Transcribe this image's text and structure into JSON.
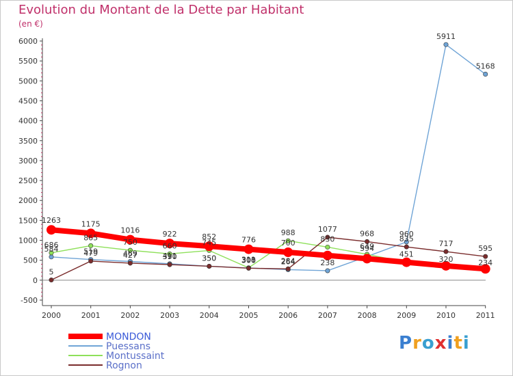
{
  "chart_data": {
    "type": "line",
    "title": "Evolution du Montant de la Dette par Habitant",
    "ylabel": "(en €)",
    "xlabel": "",
    "categories": [
      "2000",
      "2001",
      "2002",
      "2003",
      "2004",
      "2005",
      "2006",
      "2007",
      "2008",
      "2009",
      "2010",
      "2011"
    ],
    "ylim": [
      -500,
      6000
    ],
    "yticks": [
      -500,
      0,
      500,
      1000,
      1500,
      2000,
      2500,
      3000,
      3500,
      4000,
      4500,
      5000,
      5500,
      6000
    ],
    "series": [
      {
        "name": "MONDON",
        "color": "#ff0000",
        "width": 8,
        "values": [
          1263,
          1175,
          1016,
          922,
          852,
          776,
          700,
          620,
          540,
          450,
          360,
          284
        ],
        "labels": [
          "1263",
          "1175",
          "1016",
          "922",
          "852",
          "776",
          "700",
          "",
          "",
          "",
          "",
          ""
        ]
      },
      {
        "name": "Puessans",
        "color": "#6fa4d6",
        "width": 1.4,
        "values": [
          584,
          519,
          469,
          411,
          350,
          308,
          264,
          238,
          594,
          960,
          5911,
          5168
        ],
        "labels": [
          "584",
          "519",
          "469",
          "411",
          "350",
          "308",
          "264",
          "238",
          "594",
          "960",
          "5911",
          "5168"
        ]
      },
      {
        "name": "Montussaint",
        "color": "#8ee05a",
        "width": 1.4,
        "values": [
          686,
          865,
          750,
          660,
          745,
          311,
          988,
          830,
          649,
          451,
          320,
          234
        ],
        "labels": [
          "686",
          "865",
          "750",
          "660",
          "745",
          "311",
          "988",
          "830",
          "649",
          "451",
          "320",
          "234"
        ]
      },
      {
        "name": "Rognon",
        "color": "#7a2c2c",
        "width": 1.4,
        "values": [
          5,
          479,
          427,
          390,
          350,
          300,
          284,
          1077,
          968,
          835,
          717,
          595
        ],
        "labels": [
          "5",
          "479",
          "427",
          "390",
          "350",
          "300",
          "284",
          "1077",
          "968",
          "835",
          "717",
          "595"
        ]
      }
    ],
    "legend_position": "bottom-left",
    "grid": false
  },
  "logo": {
    "letters": [
      "P",
      "r",
      "o",
      "x",
      "i",
      "t",
      "i"
    ],
    "colors": [
      "#3a7fd0",
      "#f0a020",
      "#3a9fd0",
      "#e03030",
      "#3a7fd0",
      "#f0a020",
      "#3a9fd0"
    ]
  }
}
